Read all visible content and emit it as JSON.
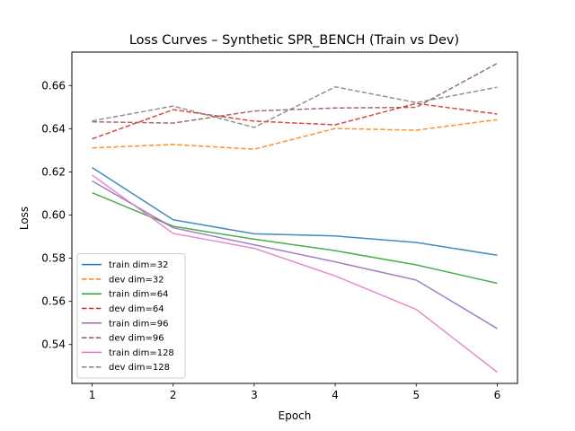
{
  "chart_data": {
    "type": "line",
    "title": "Loss Curves – Synthetic SPR_BENCH (Train vs Dev)",
    "xlabel": "Epoch",
    "ylabel": "Loss",
    "xlim": [
      0.75,
      6.25
    ],
    "ylim": [
      0.522,
      0.6755
    ],
    "x": [
      1,
      2,
      3,
      4,
      5,
      6
    ],
    "xticks": [
      1,
      2,
      3,
      4,
      5,
      6
    ],
    "yticks": [
      0.54,
      0.56,
      0.58,
      0.6,
      0.62,
      0.64,
      0.66
    ],
    "grid": false,
    "legend_position": "lower-left",
    "series": [
      {
        "name": "train dim=32",
        "color": "#1f77b4",
        "style": "solid",
        "values": [
          0.622,
          0.5978,
          0.5913,
          0.5903,
          0.5873,
          0.5814
        ]
      },
      {
        "name": "dev dim=32",
        "color": "#ff7f0e",
        "style": "dashed",
        "values": [
          0.6311,
          0.6327,
          0.6305,
          0.6401,
          0.6393,
          0.6442
        ]
      },
      {
        "name": "train dim=64",
        "color": "#2ca02c",
        "style": "solid",
        "values": [
          0.6103,
          0.5948,
          0.5888,
          0.5835,
          0.5769,
          0.5684
        ]
      },
      {
        "name": "dev dim=64",
        "color": "#d62728",
        "style": "dashed",
        "values": [
          0.6353,
          0.6488,
          0.6435,
          0.6418,
          0.6517,
          0.6468
        ]
      },
      {
        "name": "train dim=96",
        "color": "#9467bd",
        "style": "solid",
        "values": [
          0.6158,
          0.5941,
          0.5862,
          0.5783,
          0.5699,
          0.5474
        ]
      },
      {
        "name": "dev dim=96",
        "color": "#8c564b",
        "style": "dashed",
        "values": [
          0.6432,
          0.6426,
          0.6482,
          0.6496,
          0.6499,
          0.6703
        ]
      },
      {
        "name": "train dim=128",
        "color": "#e377c2",
        "style": "solid",
        "values": [
          0.6185,
          0.5915,
          0.5846,
          0.5718,
          0.5563,
          0.5272
        ]
      },
      {
        "name": "dev dim=128",
        "color": "#7f7f7f",
        "style": "dashed",
        "values": [
          0.6436,
          0.6505,
          0.6406,
          0.6594,
          0.6521,
          0.6592
        ]
      }
    ]
  }
}
